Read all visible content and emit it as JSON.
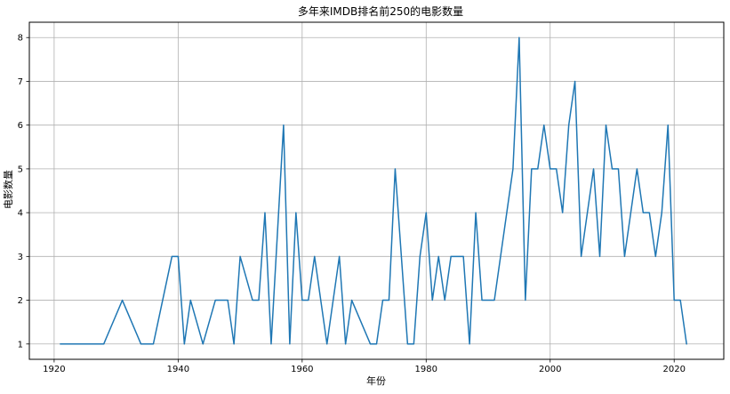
{
  "chart_data": {
    "type": "line",
    "title": "多年来IMDB排名前250的电影数量",
    "xlabel": "年份",
    "ylabel": "电影数量",
    "xlim": [
      1916,
      2028
    ],
    "ylim": [
      0.65,
      8.35
    ],
    "xticks": [
      1920,
      1940,
      1960,
      1980,
      2000,
      2020
    ],
    "yticks": [
      1,
      2,
      3,
      4,
      5,
      6,
      7,
      8
    ],
    "grid": true,
    "line_color": "#1f77b4",
    "series": [
      {
        "x": [
          1921,
          1925,
          1926,
          1927,
          1928,
          1931,
          1934,
          1936,
          1939,
          1940,
          1941,
          1942,
          1944,
          1946,
          1947,
          1948,
          1949,
          1950,
          1952,
          1953,
          1954,
          1955,
          1957,
          1958,
          1959,
          1960,
          1961,
          1962,
          1964,
          1966,
          1967,
          1968,
          1971,
          1972,
          1973,
          1974,
          1975,
          1977,
          1978,
          1979,
          1980,
          1981,
          1982,
          1983,
          1984,
          1985,
          1986,
          1987,
          1988,
          1989,
          1990,
          1991,
          1994,
          1995,
          1996,
          1997,
          1998,
          1999,
          2000,
          2001,
          2002,
          2003,
          2004,
          2005,
          2007,
          2008,
          2009,
          2010,
          2011,
          2012,
          2014,
          2015,
          2016,
          2017,
          2018,
          2019,
          2020,
          2021,
          2022
        ],
        "values": [
          1,
          1,
          1,
          1,
          1,
          2,
          1,
          1,
          3,
          3,
          1,
          2,
          1,
          2,
          2,
          2,
          1,
          3,
          2,
          2,
          4,
          1,
          6,
          1,
          4,
          2,
          2,
          3,
          1,
          3,
          1,
          2,
          1,
          1,
          2,
          2,
          5,
          1,
          1,
          3,
          4,
          2,
          3,
          2,
          3,
          3,
          3,
          1,
          4,
          2,
          2,
          2,
          5,
          8,
          2,
          5,
          5,
          6,
          5,
          5,
          4,
          6,
          7,
          3,
          5,
          3,
          6,
          5,
          5,
          3,
          5,
          4,
          4,
          3,
          4,
          6,
          2,
          2,
          1
        ]
      }
    ]
  }
}
